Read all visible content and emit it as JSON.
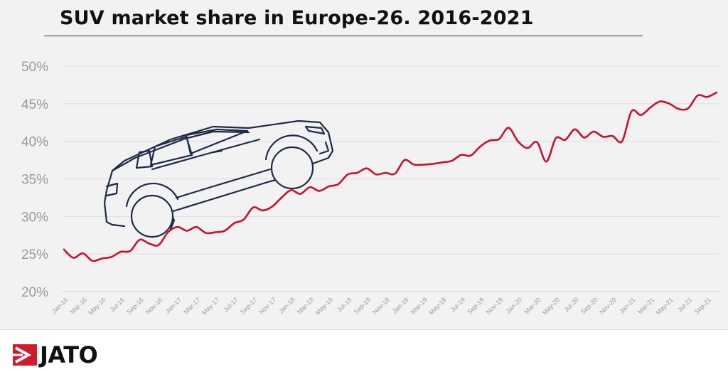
{
  "colors": {
    "line": "#c8102e",
    "grid": "#dcdcdc",
    "tick": "#9a9a9a",
    "logo_accent": "#d11a2a"
  },
  "logo": {
    "text": "JATO",
    "icon": "jato-flag-icon"
  },
  "illustration": {
    "icon": "suv-car-icon"
  },
  "chart_data": {
    "type": "line",
    "title": "SUV market share in Europe-26. 2016-2021",
    "xlabel": "",
    "ylabel": "",
    "ylim": [
      20,
      50
    ],
    "yticks": [
      20,
      25,
      30,
      35,
      40,
      45,
      50
    ],
    "ytick_labels": [
      "20%",
      "25%",
      "30%",
      "35%",
      "40%",
      "45%",
      "50%"
    ],
    "grid": true,
    "x_tick_labels": [
      "Jan-16",
      "Mar-16",
      "May-16",
      "Jul-16",
      "Sep-16",
      "Nov-16",
      "Jan-17",
      "Mar-17",
      "May-17",
      "Jul-17",
      "Sep-17",
      "Nov-17",
      "Jan-18",
      "Mar-18",
      "May-18",
      "Jul-18",
      "Sep-18",
      "Nov-18",
      "Jan-19",
      "Mar-19",
      "May-19",
      "Jul-19",
      "Sep-19",
      "Nov-19",
      "Jan-20",
      "Mar-20",
      "May-20",
      "Jul-20",
      "Sep-20",
      "Nov-20",
      "Jan-21",
      "Mar-21",
      "May-21",
      "Jul-21",
      "Sep-21"
    ],
    "series": [
      {
        "values": [
          25.6,
          24.5,
          25.1,
          24.1,
          24.4,
          24.6,
          25.3,
          25.4,
          26.9,
          26.4,
          26.2,
          27.9,
          28.6,
          28.1,
          28.6,
          27.8,
          27.9,
          28.1,
          29.1,
          29.6,
          31.2,
          30.8,
          31.3,
          32.5,
          33.5,
          33.0,
          33.9,
          33.4,
          34.0,
          34.3,
          35.6,
          35.8,
          36.4,
          35.6,
          35.8,
          35.7,
          37.5,
          36.9,
          36.9,
          37.0,
          37.2,
          37.4,
          38.2,
          38.1,
          39.3,
          40.1,
          40.3,
          41.8,
          40.0,
          39.1,
          39.9,
          37.3,
          40.4,
          40.2,
          41.6,
          40.5,
          41.3,
          40.6,
          40.7,
          40.0,
          44.0,
          43.5,
          44.5,
          45.3,
          45.0,
          44.3,
          44.4,
          46.1,
          45.9,
          46.5
        ]
      }
    ]
  }
}
